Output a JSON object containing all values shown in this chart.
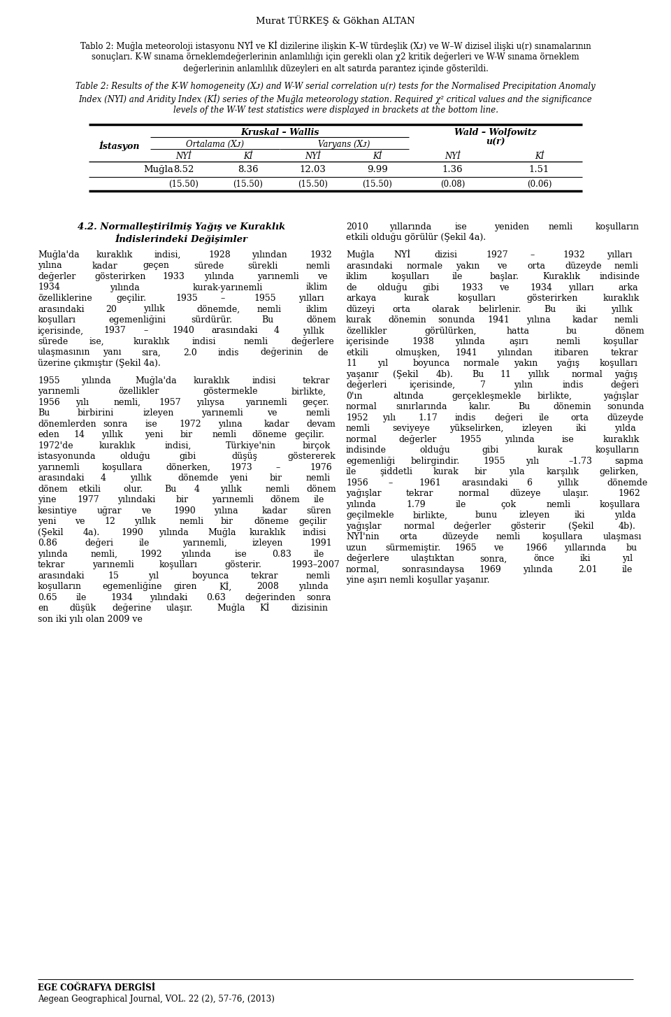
{
  "page_width": 9.6,
  "page_height": 14.54,
  "background_color": "#ffffff",
  "header_author": "Murat TÜRKEŞ & Gökhan ALTAN",
  "tablo_lines": [
    "Tablo 2: Muğla meteoroloji istasyonu NYİ ve Kİ dizilerine ilişkin K–W türdeşlik (Xᴊ) ve W–W dizisel ilişki u(r) sınamalarının",
    "sonuçları. K-W sınama örneklemdeğerlerinin anlamlılığı için gerekli olan χ2 kritik değerleri ve W-W sınama örneklem",
    "değerlerinin anlamlılık düzeyleri en alt satırda parantez içinde gösterildi."
  ],
  "en_lines": [
    "Table 2: Results of the K-W homogeneity (Xᴊ) and W-W serial correlation u(r) tests for the Normalised Precipitation Anomaly",
    "Index (NYI) and Aridity Index (Kİ) series of the Muğla meteorology station. Required χ² critical values and the significance",
    "levels of the W-W test statistics were displayed in brackets at the bottom line."
  ],
  "table_col1_header": "İstasyon",
  "table_kw_header": "Kruskal – Wallis",
  "table_ortalama": "Ortalama (Xᴊ)",
  "table_varyans": "Varyans (Xᴊ)",
  "table_ww_line1": "Wald – Wolfowitz",
  "table_ww_line2": "u(r)",
  "table_nyi": "NYİ",
  "table_ki": "Kİ",
  "table_station": "Muğla",
  "row_values": [
    "8.52",
    "8.36",
    "12.03",
    "9.99",
    "1.36",
    "1.51"
  ],
  "row_brackets": [
    "(15.50)",
    "(15.50)",
    "(15.50)",
    "(15.50)",
    "(0.08)",
    "(0.06)"
  ],
  "section_title_line1": "4.2. Normalleştirilmiş Yağış ve Kuraklık",
  "section_title_line2": "İndislerindeki Değişimler",
  "left_paragraphs": [
    "Muğla'da kuraklık indisi, 1928 yılından 1932 yılına kadar geçen sürede sürekli nemli değerler gösterirken 1933 yılında yarınemli ve 1934 yılında kurak-yarınemli iklim özelliklerine geçilir. 1935 – 1955 yılları arasındaki 20 yıllık dönemde, nemli iklim koşulları egemenliğini sürdürür. Bu dönem içerisinde, 1937 – 1940 arasındaki 4 yıllık sürede ise, kuraklık indisi nemli değerlere ulaşmasının yanı sıra, 2.0 indis değerinin de üzerine çıkmıştır (Şekil 4a).",
    "1955 yılında Muğla'da kuraklık indisi tekrar yarınemli özellikler göstermekle birlikte, 1956 yılı nemli, 1957 yılıysa yarınemli geçer. Bu birbirini izleyen yarınemli ve nemli dönemlerden sonra ise 1972 yılına kadar devam eden 14 yıllık yeni bir nemli döneme geçilir. 1972'de kuraklık indisi, Türkiye'nin birçok istasyonunda olduğu gibi düşüş göstererek yarınemli koşullara dönerken, 1973 – 1976 arasındaki 4 yıllık dönemde yeni bir nemli dönem etkili olur. Bu 4 yıllık nemli dönem yine 1977 yılındaki bir yarınemli dönem ile kesintiye uğrar ve 1990 yılına kadar süren yeni ve 12 yıllık nemli bir döneme geçilir (Şekil 4a). 1990 yılında Muğla kuraklık indisi 0.86 değeri ile yarınemli, izleyen 1991 yılında nemli, 1992 yılında ise 0.83 ile tekrar yarınemli koşulları gösterir. 1993–2007 arasındaki 15 yıl boyunca tekrar nemli koşulların egemenliğine giren Kİ, 2008 yılında 0.65 ile 1934 yılındaki 0.63 değerinden sonra en düşük değerine ulaşır. Muğla Kİ dizisinin son iki yılı olan 2009 ve"
  ],
  "right_paragraphs": [
    "2010 yıllarında ise yeniden nemli koşulların etkili olduğu görülür (Şekil 4a).",
    "Muğla NYİ dizisi 1927 – 1932 yılları arasındaki normale yakın ve orta düzeyde nemli iklim koşulları ile başlar. Kuraklık indisinde de olduğu gibi 1933 ve 1934 yılları arka arkaya kurak koşulları gösterirken kuraklık düzeyi orta olarak belirlenir. Bu iki yıllık kurak dönemin sonunda 1941 yılına kadar nemli özellikler görülürken, hatta bu dönem içerisinde 1938 yılında aşırı nemli koşullar etkili olmuşken, 1941 yılından itibaren tekrar 11 yıl boyunca normale yakın yağış koşulları yaşanır (Şekil 4b). Bu 11 yıllık normal yağış değerleri içerisinde, 7 yılın indis değeri 0'ın altında gerçekleşmekle birlikte, yağışlar normal sınırlarında kalır. Bu dönemin sonunda 1952 yılı 1.17 indis değeri ile orta düzeyde nemli seviyeye yükselirken, izleyen iki yılda normal değerler 1955 yılında ise kuraklık indisinde olduğu gibi kurak koşulların egemenliği belirgindir. 1955 yılı –1.73 sapma ile şiddetli kurak bir yıla karşılık gelirken, 1956 – 1961 arasındaki 6 yıllık dönemde yağışlar tekrar normal düzeye ulaşır. 1962 yılında 1.79 ile çok nemli koşullara geçilmekle birlikte, bunu izleyen iki yılda yağışlar normal değerler gösterir (Şekil 4b). NYİ'nin orta düzeyde nemli koşullara ulaşması uzun sürmemiştir. 1965 ve 1966 yıllarında bu değerlere ulaştıktan sonra, önce iki yıl normal, sonrasındaysa 1969 yılında 2.01 ile yine aşırı nemli koşullar yaşanır."
  ],
  "footer_journal": "EGE COĞRAFYA DERGİSİ",
  "footer_journal_en": "Aegean Geographical Journal, VOL. 22 (2), 57-76, (2013)"
}
